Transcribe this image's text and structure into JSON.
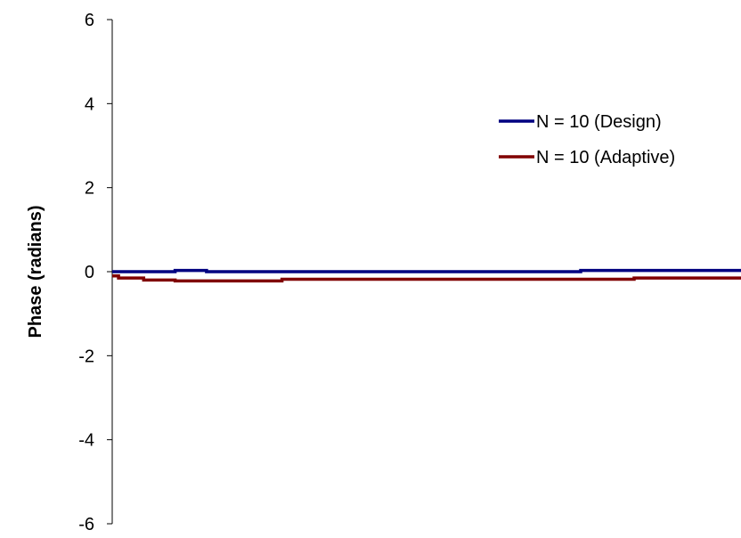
{
  "chart_data": {
    "type": "line",
    "title": "",
    "xlabel": "",
    "ylabel": "Phase (radians)",
    "ylim": [
      -6,
      6
    ],
    "yticks": [
      6,
      4,
      2,
      0,
      -2,
      -4,
      -6
    ],
    "ytick_labels": [
      "6",
      "4",
      "2",
      "0",
      "-2",
      "-4",
      "-6"
    ],
    "xlim": [
      0,
      1
    ],
    "grid": false,
    "legend_position": "right",
    "series": [
      {
        "name": "N = 10 (Design)",
        "color": "#000080",
        "points": [
          [
            0.0,
            0.0
          ],
          [
            0.1,
            0.0
          ],
          [
            0.1,
            0.03
          ],
          [
            0.15,
            0.03
          ],
          [
            0.15,
            0.0
          ],
          [
            0.745,
            0.0
          ],
          [
            0.745,
            0.03
          ],
          [
            1.0,
            0.03
          ]
        ]
      },
      {
        "name": "N = 10 (Adaptive)",
        "color": "#800000",
        "points": [
          [
            0.0,
            -0.1
          ],
          [
            0.01,
            -0.1
          ],
          [
            0.01,
            -0.15
          ],
          [
            0.05,
            -0.15
          ],
          [
            0.05,
            -0.2
          ],
          [
            0.1,
            -0.2
          ],
          [
            0.1,
            -0.22
          ],
          [
            0.27,
            -0.22
          ],
          [
            0.27,
            -0.18
          ],
          [
            0.83,
            -0.18
          ],
          [
            0.83,
            -0.15
          ],
          [
            1.0,
            -0.15
          ]
        ]
      }
    ]
  }
}
